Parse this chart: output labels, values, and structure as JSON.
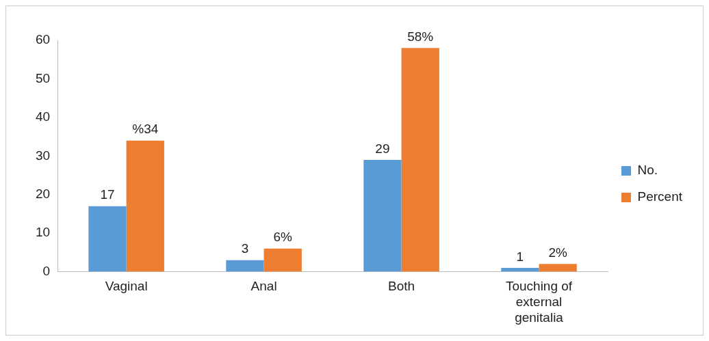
{
  "chart_data": {
    "type": "bar",
    "categories": [
      "Vaginal",
      "Anal",
      "Both",
      "Touching of external genitalia"
    ],
    "series": [
      {
        "name": "No.",
        "color": "#5b9bd5",
        "values": [
          17,
          3,
          29,
          1
        ],
        "value_labels": [
          "17",
          "3",
          "29",
          "1"
        ]
      },
      {
        "name": "Percent",
        "color": "#ed7d31",
        "values": [
          34,
          6,
          58,
          2
        ],
        "value_labels": [
          "%34",
          "6%",
          "58%",
          "2%"
        ]
      }
    ],
    "ylim": [
      0,
      60
    ],
    "yticks": [
      0,
      10,
      20,
      30,
      40,
      50,
      60
    ],
    "grid": false,
    "legend": "right"
  }
}
